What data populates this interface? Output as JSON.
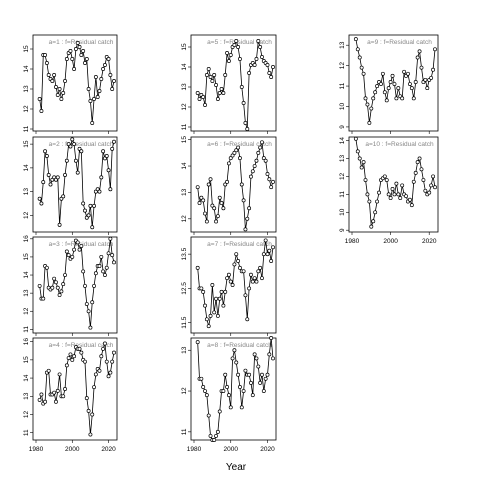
{
  "chart_data": {
    "type": "line",
    "xlabel": "Year",
    "xlim": [
      1980,
      2023
    ],
    "xticks": [
      1980,
      2000,
      2020
    ],
    "panels": [
      {
        "title": "a=1  :  f=Residual catch",
        "ylim": [
          10.9,
          15.7
        ],
        "yticks": [
          11,
          12,
          13,
          14,
          15
        ],
        "x": [
          1982,
          1983,
          1984,
          1985,
          1986,
          1987,
          1988,
          1989,
          1990,
          1991,
          1992,
          1993,
          1994,
          1995,
          1996,
          1997,
          1998,
          1999,
          2000,
          2001,
          2002,
          2003,
          2004,
          2005,
          2006,
          2007,
          2008,
          2009,
          2010,
          2011,
          2012,
          2013,
          2014,
          2015,
          2016,
          2017,
          2018,
          2019,
          2020,
          2021,
          2022,
          2023
        ],
        "values": [
          12.5,
          11.9,
          14.7,
          14.7,
          14.3,
          13.7,
          13.5,
          13.4,
          13.7,
          13.1,
          12.7,
          13.0,
          12.5,
          12.8,
          13.4,
          14.5,
          14.8,
          14.9,
          14.5,
          14.0,
          15.0,
          15.3,
          15.1,
          14.7,
          14.9,
          14.3,
          14.5,
          13.0,
          12.4,
          11.3,
          12.5,
          13.6,
          12.6,
          12.9,
          13.5,
          14.0,
          14.2,
          14.6,
          14.5,
          13.7,
          13.0,
          13.4
        ]
      },
      {
        "title": "a=2  :  f=Residual catch",
        "ylim": [
          11.3,
          15.3
        ],
        "yticks": [
          12,
          13,
          14,
          15
        ],
        "x": [
          1982,
          1983,
          1984,
          1985,
          1986,
          1987,
          1988,
          1989,
          1990,
          1991,
          1992,
          1993,
          1994,
          1995,
          1996,
          1997,
          1998,
          1999,
          2000,
          2001,
          2002,
          2003,
          2004,
          2005,
          2006,
          2007,
          2008,
          2009,
          2010,
          2011,
          2012,
          2013,
          2014,
          2015,
          2016,
          2017,
          2018,
          2019,
          2020,
          2021,
          2022,
          2023
        ],
        "values": [
          12.7,
          12.5,
          13.4,
          14.7,
          14.5,
          13.7,
          13.3,
          13.5,
          13.6,
          13.5,
          13.6,
          11.6,
          12.7,
          12.8,
          13.7,
          14.3,
          15.0,
          14.9,
          15.2,
          15.0,
          14.3,
          13.8,
          14.8,
          14.7,
          12.5,
          12.2,
          11.9,
          12.0,
          12.4,
          11.5,
          12.4,
          13.0,
          13.1,
          13.0,
          13.6,
          14.7,
          14.4,
          14.5,
          13.9,
          13.1,
          14.8,
          15.1
        ]
      },
      {
        "title": "a=3  :  f=Residual catch",
        "ylim": [
          10.8,
          16.1
        ],
        "yticks": [
          11,
          12,
          13,
          14,
          15,
          16
        ],
        "x": [
          1982,
          1983,
          1984,
          1985,
          1986,
          1987,
          1988,
          1989,
          1990,
          1991,
          1992,
          1993,
          1994,
          1995,
          1996,
          1997,
          1998,
          1999,
          2000,
          2001,
          2002,
          2003,
          2004,
          2005,
          2006,
          2007,
          2008,
          2009,
          2010,
          2011,
          2012,
          2013,
          2014,
          2015,
          2016,
          2017,
          2018,
          2019,
          2020,
          2021,
          2022,
          2023
        ],
        "values": [
          13.4,
          12.7,
          12.7,
          14.5,
          14.4,
          13.3,
          13.2,
          13.3,
          13.8,
          13.6,
          13.3,
          12.9,
          13.1,
          13.5,
          14.0,
          15.3,
          15.1,
          14.9,
          15.0,
          15.4,
          15.9,
          15.8,
          15.4,
          15.6,
          14.2,
          13.4,
          12.4,
          12.0,
          11.1,
          12.5,
          13.4,
          14.1,
          14.5,
          14.5,
          15.0,
          14.2,
          14.0,
          14.4,
          15.2,
          16.0,
          15.1,
          14.7
        ]
      },
      {
        "title": "a=4  :  f=Residual catch",
        "ylim": [
          10.6,
          16.2
        ],
        "yticks": [
          11,
          12,
          13,
          14,
          15,
          16
        ],
        "x": [
          1982,
          1983,
          1984,
          1985,
          1986,
          1987,
          1988,
          1989,
          1990,
          1991,
          1992,
          1993,
          1994,
          1995,
          1996,
          1997,
          1998,
          1999,
          2000,
          2001,
          2002,
          2003,
          2004,
          2005,
          2006,
          2007,
          2008,
          2009,
          2010,
          2011,
          2012,
          2013,
          2014,
          2015,
          2016,
          2017,
          2018,
          2019,
          2020,
          2021,
          2022,
          2023
        ],
        "values": [
          12.8,
          13.1,
          12.6,
          12.7,
          14.3,
          14.4,
          13.1,
          13.1,
          13.2,
          12.7,
          13.3,
          14.2,
          13.0,
          13.0,
          13.4,
          14.7,
          15.1,
          15.3,
          15.0,
          15.2,
          15.7,
          15.6,
          15.6,
          15.4,
          15.0,
          14.9,
          12.9,
          12.2,
          10.9,
          12.0,
          13.5,
          14.2,
          14.5,
          14.4,
          15.2,
          15.6,
          15.9,
          14.9,
          14.1,
          14.3,
          14.9,
          15.4
        ]
      },
      {
        "title": "a=5  :  f=Residual catch",
        "ylim": [
          10.8,
          15.6
        ],
        "yticks": [
          11,
          12,
          13,
          14,
          15
        ],
        "x": [
          1982,
          1983,
          1984,
          1985,
          1986,
          1987,
          1988,
          1989,
          1990,
          1991,
          1992,
          1993,
          1994,
          1995,
          1996,
          1997,
          1998,
          1999,
          2000,
          2001,
          2002,
          2003,
          2004,
          2005,
          2006,
          2007,
          2008,
          2009,
          2010,
          2011,
          2012,
          2013,
          2014,
          2015,
          2016,
          2017,
          2018,
          2019,
          2020,
          2021,
          2022,
          2023
        ],
        "values": [
          12.7,
          12.4,
          12.6,
          12.5,
          12.1,
          13.6,
          13.9,
          13.5,
          13.3,
          13.6,
          13.1,
          12.4,
          12.7,
          12.9,
          12.7,
          13.6,
          14.7,
          14.3,
          14.6,
          15.0,
          15.1,
          15.3,
          15.0,
          14.4,
          13.0,
          12.2,
          11.2,
          10.9,
          13.7,
          14.1,
          14.2,
          14.1,
          14.4,
          15.3,
          15.0,
          14.5,
          14.3,
          14.2,
          14.1,
          13.7,
          13.5,
          14.0
        ]
      },
      {
        "title": "a=6  :  f=Residual catch",
        "ylim": [
          11.5,
          15.1
        ],
        "yticks": [
          12.0,
          13.0,
          14.0,
          15.0
        ],
        "x": [
          1982,
          1983,
          1984,
          1985,
          1986,
          1987,
          1988,
          1989,
          1990,
          1991,
          1992,
          1993,
          1994,
          1995,
          1996,
          1997,
          1998,
          1999,
          2000,
          2001,
          2002,
          2003,
          2004,
          2005,
          2006,
          2007,
          2008,
          2009,
          2010,
          2011,
          2012,
          2013,
          2014,
          2015,
          2016,
          2017,
          2018,
          2019,
          2020,
          2021,
          2022,
          2023
        ],
        "values": [
          13.2,
          12.6,
          12.8,
          12.7,
          12.2,
          11.9,
          13.3,
          13.5,
          12.5,
          12.4,
          11.9,
          12.1,
          12.8,
          12.6,
          12.4,
          13.3,
          13.4,
          14.1,
          14.3,
          14.4,
          14.5,
          14.6,
          14.7,
          14.3,
          13.3,
          12.7,
          11.6,
          12.0,
          12.4,
          13.6,
          13.8,
          14.0,
          14.2,
          14.5,
          14.7,
          14.9,
          14.3,
          14.2,
          13.7,
          13.5,
          13.2,
          13.4
        ]
      },
      {
        "title": "a=7  :  f=Residual catch",
        "ylim": [
          11.2,
          14.0
        ],
        "yticks": [
          11.5,
          12.5,
          13.5
        ],
        "x": [
          1982,
          1983,
          1984,
          1985,
          1986,
          1987,
          1988,
          1989,
          1990,
          1991,
          1992,
          1993,
          1994,
          1995,
          1996,
          1997,
          1998,
          1999,
          2000,
          2001,
          2002,
          2003,
          2004,
          2005,
          2006,
          2007,
          2008,
          2009,
          2010,
          2011,
          2012,
          2013,
          2014,
          2015,
          2016,
          2017,
          2018,
          2019,
          2020,
          2021,
          2022,
          2023
        ],
        "values": [
          13.1,
          12.5,
          12.5,
          12.4,
          12.0,
          11.6,
          11.4,
          11.7,
          12.6,
          11.8,
          12.2,
          11.7,
          12.2,
          12.4,
          12.0,
          12.4,
          12.8,
          12.9,
          12.7,
          12.6,
          13.2,
          13.5,
          13.3,
          13.1,
          13.0,
          13.0,
          12.3,
          11.6,
          12.5,
          12.9,
          12.7,
          12.8,
          12.7,
          13.0,
          13.1,
          12.8,
          13.5,
          13.9,
          13.5,
          13.6,
          13.3,
          13.7
        ]
      },
      {
        "title": "a=8  :  f=Residual catch",
        "ylim": [
          10.8,
          13.3
        ],
        "yticks": [
          11.0,
          12.0,
          13.0
        ],
        "x": [
          1982,
          1983,
          1984,
          1985,
          1986,
          1987,
          1988,
          1989,
          1990,
          1991,
          1992,
          1993,
          1994,
          1995,
          1996,
          1997,
          1998,
          1999,
          2000,
          2001,
          2002,
          2003,
          2004,
          2005,
          2006,
          2007,
          2008,
          2009,
          2010,
          2011,
          2012,
          2013,
          2014,
          2015,
          2016,
          2017,
          2018,
          2019,
          2020,
          2021,
          2022,
          2023
        ],
        "values": [
          13.2,
          12.3,
          12.3,
          12.1,
          12.0,
          11.9,
          11.4,
          10.9,
          10.8,
          10.8,
          10.9,
          11.0,
          11.5,
          12.0,
          12.0,
          12.4,
          12.1,
          11.9,
          11.6,
          12.8,
          13.0,
          12.7,
          12.4,
          12.1,
          11.6,
          12.0,
          12.5,
          12.4,
          12.4,
          12.2,
          11.9,
          12.9,
          12.8,
          12.6,
          12.2,
          12.4,
          12.0,
          12.3,
          12.4,
          12.9,
          13.3,
          12.8
        ]
      },
      {
        "title": "a=9  :  f=Residual catch",
        "ylim": [
          8.8,
          13.5
        ],
        "yticks": [
          9,
          10,
          11,
          12,
          13
        ],
        "x": [
          1982,
          1983,
          1984,
          1985,
          1986,
          1987,
          1988,
          1989,
          1990,
          1991,
          1992,
          1993,
          1994,
          1995,
          1996,
          1997,
          1998,
          1999,
          2000,
          2001,
          2002,
          2003,
          2004,
          2005,
          2006,
          2007,
          2008,
          2009,
          2010,
          2011,
          2012,
          2013,
          2014,
          2015,
          2016,
          2017,
          2018,
          2019,
          2020,
          2021,
          2022,
          2023
        ],
        "values": [
          13.3,
          12.8,
          12.4,
          11.9,
          11.6,
          10.4,
          10.1,
          9.2,
          9.9,
          10.4,
          10.7,
          11.0,
          11.2,
          11.1,
          11.6,
          10.7,
          10.3,
          10.9,
          11.2,
          11.5,
          11.1,
          10.4,
          10.9,
          10.5,
          10.4,
          11.7,
          11.5,
          11.6,
          11.1,
          10.9,
          10.4,
          11.2,
          12.4,
          12.7,
          11.9,
          11.2,
          11.3,
          10.9,
          11.3,
          11.4,
          11.8,
          12.8
        ]
      },
      {
        "title": "a=10  :  f=Residual catch",
        "ylim": [
          8.9,
          14.2
        ],
        "yticks": [
          9,
          10,
          11,
          12,
          13,
          14
        ],
        "x": [
          1982,
          1983,
          1984,
          1985,
          1986,
          1987,
          1988,
          1989,
          1990,
          1991,
          1992,
          1993,
          1994,
          1995,
          1996,
          1997,
          1998,
          1999,
          2000,
          2001,
          2002,
          2003,
          2004,
          2005,
          2006,
          2007,
          2008,
          2009,
          2010,
          2011,
          2012,
          2013,
          2014,
          2015,
          2016,
          2017,
          2018,
          2019,
          2020,
          2021,
          2022,
          2023
        ],
        "values": [
          14.1,
          13.4,
          13.0,
          12.5,
          12.8,
          11.8,
          11.0,
          10.6,
          9.2,
          9.5,
          10.0,
          10.6,
          11.1,
          11.8,
          11.9,
          12.0,
          11.8,
          11.0,
          10.8,
          11.3,
          11.0,
          11.6,
          11.0,
          10.8,
          11.5,
          11.0,
          10.9,
          10.6,
          10.7,
          10.4,
          11.7,
          12.2,
          12.8,
          13.0,
          12.4,
          11.8,
          11.2,
          11.0,
          11.1,
          11.5,
          12.0,
          11.4
        ]
      }
    ]
  }
}
